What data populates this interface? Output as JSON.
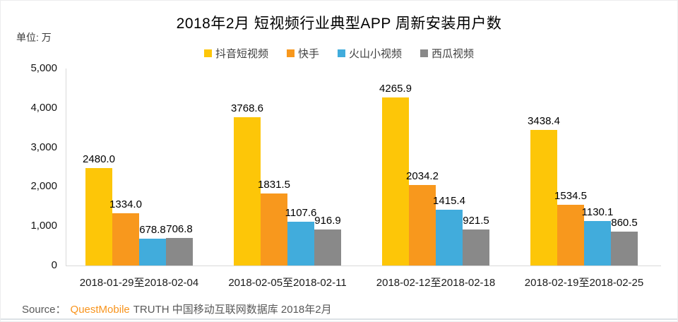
{
  "title": "2018年2月 短视频行业典型APP 周新安装用户数",
  "unit_label": "单位: 万",
  "source": {
    "prefix": "Source：",
    "brand": "QuestMobile",
    "suffix": "TRUTH 中国移动互联网数据库 2018年2月"
  },
  "colors": {
    "douyin": "#fdc608",
    "kuaishou": "#f8981d",
    "huoshan": "#41acdc",
    "xigua": "#898989",
    "axis": "#d9d9d9",
    "brand_orange": "#f8941d"
  },
  "chart_data": {
    "type": "bar",
    "title": "2018年2月 短视频行业典型APP 周新安装用户数",
    "unit": "万",
    "grid": false,
    "legend_position": "top",
    "categories": [
      "2018-01-29至2018-02-04",
      "2018-02-05至2018-02-11",
      "2018-02-12至2018-02-18",
      "2018-02-19至2018-02-25"
    ],
    "series": [
      {
        "key": "douyin",
        "name": "抖音短视频",
        "color": "#fdc608",
        "values": [
          2480.0,
          3768.6,
          4265.9,
          3438.4
        ]
      },
      {
        "key": "kuaishou",
        "name": "快手",
        "color": "#f8981d",
        "values": [
          1334.0,
          1831.5,
          2034.2,
          1534.5
        ]
      },
      {
        "key": "huoshan",
        "name": "火山小视频",
        "color": "#41acdc",
        "values": [
          678.8,
          1107.6,
          1415.4,
          1130.1
        ]
      },
      {
        "key": "xigua",
        "name": "西瓜视频",
        "color": "#898989",
        "values": [
          706.8,
          916.9,
          921.5,
          860.5
        ]
      }
    ],
    "y_axis": {
      "min": 0,
      "max": 5000,
      "ticks": [
        "5,000",
        "4,000",
        "3,000",
        "2,000",
        "1,000",
        "0"
      ]
    }
  }
}
